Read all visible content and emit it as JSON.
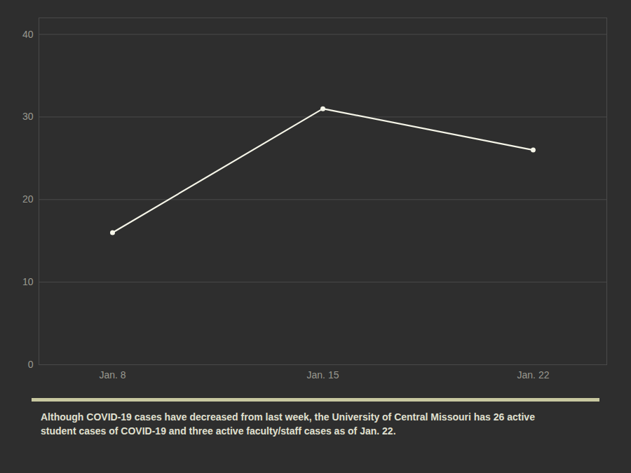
{
  "chart_data": {
    "type": "line",
    "categories": [
      "Jan. 8",
      "Jan. 15",
      "Jan. 22"
    ],
    "values": [
      16,
      31,
      26
    ],
    "color": "#f5f5e8",
    "marker": "circle",
    "ylim": [
      0,
      42
    ],
    "yticks": [
      0,
      10,
      20,
      30,
      40
    ],
    "grid": true,
    "caption": [
      "Although COVID-19 cases have decreased from last week, the University of Central Missouri has 26 active",
      "student cases of COVID-19 and three active faculty/staff cases as of Jan. 22."
    ]
  }
}
